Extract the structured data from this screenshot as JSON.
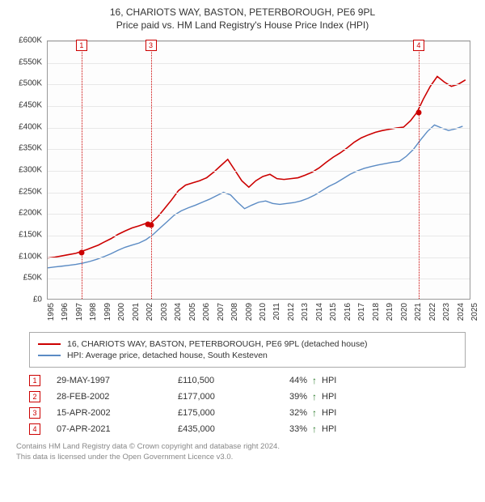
{
  "title_line1": "16, CHARIOTS WAY, BASTON, PETERBOROUGH, PE6 9PL",
  "title_line2": "Price paid vs. HM Land Registry's House Price Index (HPI)",
  "chart": {
    "type": "line",
    "xlim": [
      1995,
      2025
    ],
    "ylim": [
      0,
      600000
    ],
    "ytick_step": 50000,
    "ytick_labels": [
      "£0",
      "£50K",
      "£100K",
      "£150K",
      "£200K",
      "£250K",
      "£300K",
      "£350K",
      "£400K",
      "£450K",
      "£500K",
      "£550K",
      "£600K"
    ],
    "xticks": [
      1995,
      1996,
      1997,
      1998,
      1999,
      2000,
      2001,
      2002,
      2003,
      2004,
      2005,
      2006,
      2007,
      2008,
      2009,
      2010,
      2011,
      2012,
      2013,
      2014,
      2015,
      2016,
      2017,
      2018,
      2019,
      2020,
      2021,
      2022,
      2023,
      2024,
      2025
    ],
    "background_color": "#fdfdfd",
    "grid_color": "#e8e8e8",
    "border_color": "#999999",
    "series": [
      {
        "name": "16, CHARIOTS WAY, BASTON, PETERBOROUGH, PE6 9PL (detached house)",
        "color": "#cc0000",
        "line_width": 1.6,
        "data": [
          [
            1995.0,
            95000
          ],
          [
            1995.5,
            97000
          ],
          [
            1996.0,
            100000
          ],
          [
            1996.5,
            103000
          ],
          [
            1997.0,
            106000
          ],
          [
            1997.4,
            110500
          ],
          [
            1997.8,
            115000
          ],
          [
            1998.2,
            120000
          ],
          [
            1998.6,
            125000
          ],
          [
            1999.0,
            132000
          ],
          [
            1999.5,
            140000
          ],
          [
            2000.0,
            150000
          ],
          [
            2000.5,
            158000
          ],
          [
            2001.0,
            165000
          ],
          [
            2001.5,
            170000
          ],
          [
            2002.1,
            177000
          ],
          [
            2002.3,
            175000
          ],
          [
            2002.8,
            190000
          ],
          [
            2003.3,
            210000
          ],
          [
            2003.8,
            230000
          ],
          [
            2004.3,
            252000
          ],
          [
            2004.8,
            265000
          ],
          [
            2005.3,
            270000
          ],
          [
            2005.8,
            275000
          ],
          [
            2006.3,
            282000
          ],
          [
            2006.8,
            295000
          ],
          [
            2007.3,
            310000
          ],
          [
            2007.8,
            325000
          ],
          [
            2008.3,
            300000
          ],
          [
            2008.8,
            275000
          ],
          [
            2009.3,
            260000
          ],
          [
            2009.8,
            275000
          ],
          [
            2010.3,
            285000
          ],
          [
            2010.8,
            290000
          ],
          [
            2011.3,
            280000
          ],
          [
            2011.8,
            278000
          ],
          [
            2012.3,
            280000
          ],
          [
            2012.8,
            282000
          ],
          [
            2013.3,
            288000
          ],
          [
            2013.8,
            295000
          ],
          [
            2014.3,
            305000
          ],
          [
            2014.8,
            318000
          ],
          [
            2015.3,
            330000
          ],
          [
            2015.8,
            340000
          ],
          [
            2016.3,
            352000
          ],
          [
            2016.8,
            365000
          ],
          [
            2017.3,
            375000
          ],
          [
            2017.8,
            382000
          ],
          [
            2018.3,
            388000
          ],
          [
            2018.8,
            392000
          ],
          [
            2019.3,
            395000
          ],
          [
            2019.8,
            398000
          ],
          [
            2020.3,
            400000
          ],
          [
            2020.8,
            415000
          ],
          [
            2021.27,
            435000
          ],
          [
            2021.7,
            465000
          ],
          [
            2022.2,
            495000
          ],
          [
            2022.7,
            518000
          ],
          [
            2023.2,
            505000
          ],
          [
            2023.7,
            495000
          ],
          [
            2024.2,
            500000
          ],
          [
            2024.7,
            510000
          ]
        ]
      },
      {
        "name": "HPI: Average price, detached house, South Kesteven",
        "color": "#5b8bc4",
        "line_width": 1.4,
        "data": [
          [
            1995.0,
            72000
          ],
          [
            1995.5,
            74000
          ],
          [
            1996.0,
            76000
          ],
          [
            1996.5,
            78000
          ],
          [
            1997.0,
            80000
          ],
          [
            1997.5,
            83000
          ],
          [
            1998.0,
            87000
          ],
          [
            1998.5,
            92000
          ],
          [
            1999.0,
            98000
          ],
          [
            1999.5,
            105000
          ],
          [
            2000.0,
            113000
          ],
          [
            2000.5,
            120000
          ],
          [
            2001.0,
            125000
          ],
          [
            2001.5,
            130000
          ],
          [
            2002.0,
            138000
          ],
          [
            2002.5,
            150000
          ],
          [
            2003.0,
            165000
          ],
          [
            2003.5,
            180000
          ],
          [
            2004.0,
            195000
          ],
          [
            2004.5,
            205000
          ],
          [
            2005.0,
            212000
          ],
          [
            2005.5,
            218000
          ],
          [
            2006.0,
            225000
          ],
          [
            2006.5,
            232000
          ],
          [
            2007.0,
            240000
          ],
          [
            2007.5,
            248000
          ],
          [
            2008.0,
            242000
          ],
          [
            2008.5,
            225000
          ],
          [
            2009.0,
            210000
          ],
          [
            2009.5,
            218000
          ],
          [
            2010.0,
            225000
          ],
          [
            2010.5,
            228000
          ],
          [
            2011.0,
            222000
          ],
          [
            2011.5,
            220000
          ],
          [
            2012.0,
            222000
          ],
          [
            2012.5,
            224000
          ],
          [
            2013.0,
            228000
          ],
          [
            2013.5,
            234000
          ],
          [
            2014.0,
            242000
          ],
          [
            2014.5,
            252000
          ],
          [
            2015.0,
            262000
          ],
          [
            2015.5,
            270000
          ],
          [
            2016.0,
            280000
          ],
          [
            2016.5,
            290000
          ],
          [
            2017.0,
            298000
          ],
          [
            2017.5,
            304000
          ],
          [
            2018.0,
            308000
          ],
          [
            2018.5,
            312000
          ],
          [
            2019.0,
            315000
          ],
          [
            2019.5,
            318000
          ],
          [
            2020.0,
            320000
          ],
          [
            2020.5,
            332000
          ],
          [
            2021.0,
            348000
          ],
          [
            2021.5,
            370000
          ],
          [
            2022.0,
            390000
          ],
          [
            2022.5,
            405000
          ],
          [
            2023.0,
            398000
          ],
          [
            2023.5,
            392000
          ],
          [
            2024.0,
            396000
          ],
          [
            2024.5,
            402000
          ]
        ]
      }
    ],
    "sale_markers": [
      {
        "index": "1",
        "x": 1997.4
      },
      {
        "index": "3",
        "x": 2002.3
      },
      {
        "index": "4",
        "x": 2021.27
      }
    ],
    "sale_points": [
      {
        "x": 1997.4,
        "y": 110500
      },
      {
        "x": 2002.1,
        "y": 177000
      },
      {
        "x": 2002.3,
        "y": 175000
      },
      {
        "x": 2021.27,
        "y": 435000
      }
    ],
    "point_color": "#cc0000"
  },
  "legend": {
    "items": [
      {
        "color": "#cc0000",
        "label": "16, CHARIOTS WAY, BASTON, PETERBOROUGH, PE6 9PL (detached house)"
      },
      {
        "color": "#5b8bc4",
        "label": "HPI: Average price, detached house, South Kesteven"
      }
    ]
  },
  "transactions": {
    "hpi_label": "HPI",
    "arrow": "↑",
    "rows": [
      {
        "n": "1",
        "date": "29-MAY-1997",
        "price": "£110,500",
        "pct": "44%"
      },
      {
        "n": "2",
        "date": "28-FEB-2002",
        "price": "£177,000",
        "pct": "39%"
      },
      {
        "n": "3",
        "date": "15-APR-2002",
        "price": "£175,000",
        "pct": "32%"
      },
      {
        "n": "4",
        "date": "07-APR-2021",
        "price": "£435,000",
        "pct": "33%"
      }
    ]
  },
  "footer": {
    "line1": "Contains HM Land Registry data © Crown copyright and database right 2024.",
    "line2": "This data is licensed under the Open Government Licence v3.0."
  }
}
